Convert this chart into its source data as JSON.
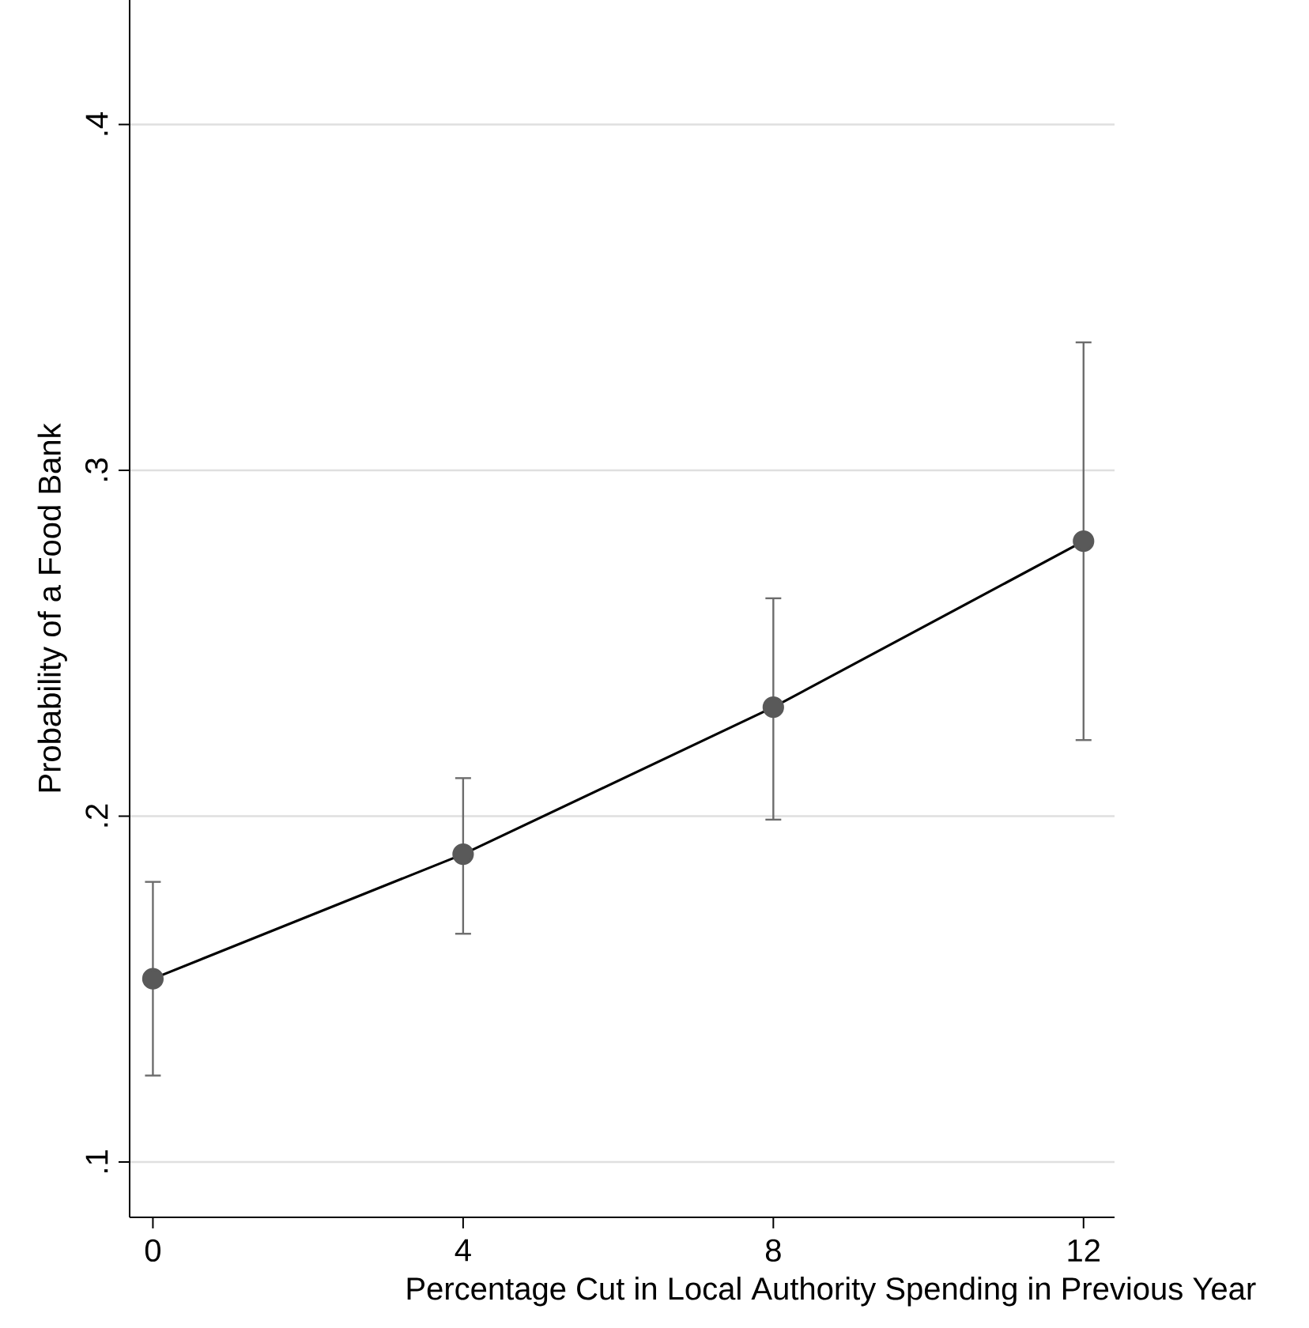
{
  "chart_data": {
    "type": "line",
    "xlabel": "Percentage Cut in Local Authority Spending in Previous Year",
    "ylabel": "Probability of a Food Bank",
    "x": [
      0,
      4,
      8,
      12
    ],
    "series": [
      {
        "color": "#000000",
        "values": [
          0.153,
          0.189,
          0.2315,
          0.2795
        ],
        "errors": [
          [
            0.125,
            0.181
          ],
          [
            0.166,
            0.211
          ],
          [
            0.199,
            0.263
          ],
          [
            0.222,
            0.337
          ]
        ]
      }
    ],
    "xlim": [
      -0.3,
      12.4
    ],
    "ylim": [
      0.084,
      0.436
    ],
    "xticks": [
      0,
      4,
      8,
      12
    ],
    "yticks": [
      {
        "value": 0.1,
        "label": ".1"
      },
      {
        "value": 0.2,
        "label": ".2"
      },
      {
        "value": 0.3,
        "label": ".3"
      },
      {
        "value": 0.4,
        "label": ".4"
      }
    ],
    "grid": "y",
    "marker": "circle",
    "line_style": "solid"
  }
}
